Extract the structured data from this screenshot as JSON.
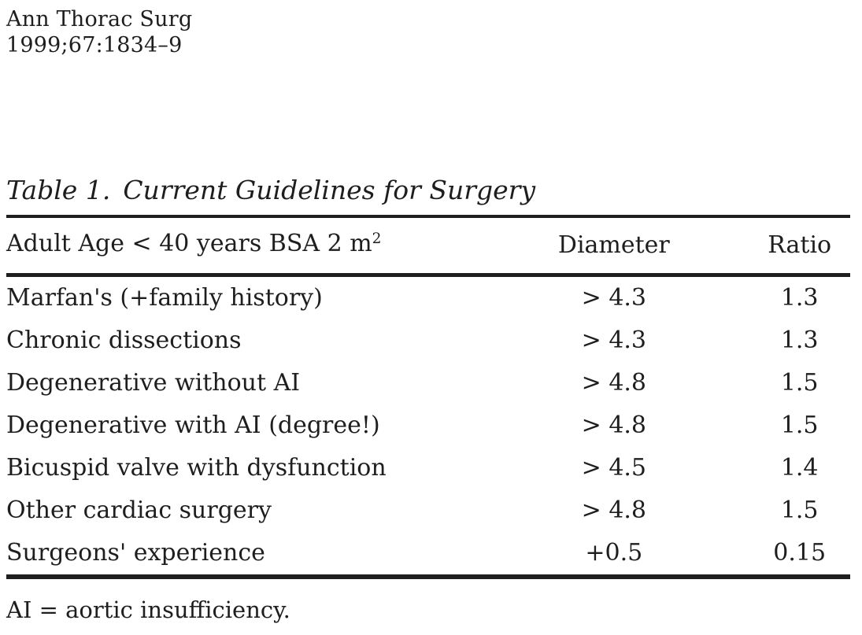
{
  "journal": {
    "name": "Ann Thorac Surg",
    "citation": "1999;67:1834–9"
  },
  "table": {
    "label": "Table 1.",
    "title": "Current Guidelines for Surgery",
    "header": {
      "condition": "Adult Age < 40 years BSA 2 m",
      "condition_sup": "2",
      "diameter": "Diameter",
      "ratio": "Ratio"
    },
    "rows": [
      {
        "condition": "Marfan's (+family history)",
        "diameter": "> 4.3",
        "ratio": "1.3"
      },
      {
        "condition": "Chronic dissections",
        "diameter": "> 4.3",
        "ratio": "1.3"
      },
      {
        "condition": "Degenerative without AI",
        "diameter": "> 4.8",
        "ratio": "1.5"
      },
      {
        "condition": "Degenerative with AI (degree!)",
        "diameter": "> 4.8",
        "ratio": "1.5"
      },
      {
        "condition": "Bicuspid valve with dysfunction",
        "diameter": "> 4.5",
        "ratio": "1.4"
      },
      {
        "condition": "Other cardiac surgery",
        "diameter": "> 4.8",
        "ratio": "1.5"
      },
      {
        "condition": "Surgeons' experience",
        "diameter": "+0.5",
        "ratio": "0.15"
      }
    ],
    "footnote": "AI = aortic insufficiency."
  },
  "colors": {
    "text": "#1e1e1e",
    "rules": "#1f1f1f",
    "background": "#ffffff"
  }
}
